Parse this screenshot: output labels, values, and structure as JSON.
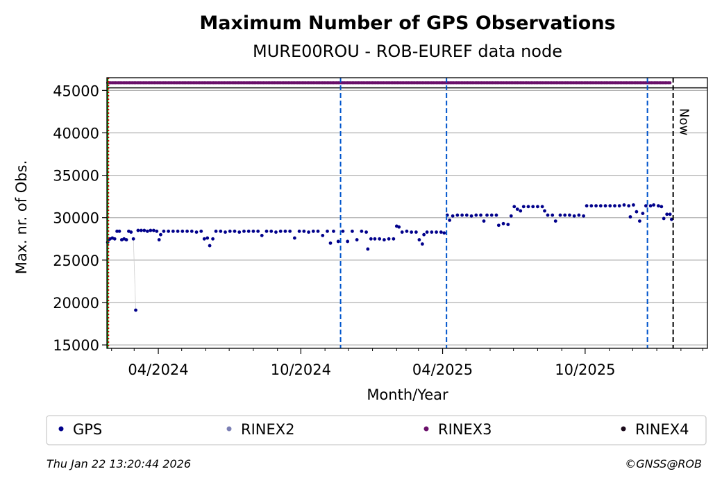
{
  "chart_data": {
    "type": "scatter",
    "title": "Maximum Number of GPS Observations",
    "subtitle": "MURE00ROU - ROB-EUREF data node",
    "xlabel": "Month/Year",
    "ylabel": "Max. nr. of Obs.",
    "xlim": [
      "2024-01-26",
      "2026-03-07"
    ],
    "ylim": [
      14600,
      46500
    ],
    "yticks": [
      15000,
      20000,
      25000,
      30000,
      35000,
      40000,
      45000
    ],
    "xticks": [
      {
        "date": "2024-04-01",
        "label": "04/2024"
      },
      {
        "date": "2024-10-01",
        "label": "10/2024"
      },
      {
        "date": "2025-04-01",
        "label": "04/2025"
      },
      {
        "date": "2025-10-01",
        "label": "10/2025"
      }
    ],
    "minor_xticks": [
      "2024-02-01",
      "2024-03-01",
      "2024-05-01",
      "2024-06-01",
      "2024-07-01",
      "2024-08-01",
      "2024-09-01",
      "2024-11-01",
      "2024-12-01",
      "2025-01-01",
      "2025-02-01",
      "2025-03-01",
      "2025-05-01",
      "2025-06-01",
      "2025-07-01",
      "2025-08-01",
      "2025-09-01",
      "2025-11-01",
      "2025-12-01",
      "2026-01-01",
      "2026-02-01",
      "2026-03-01"
    ],
    "grid": "y",
    "reference_line": {
      "y": 45300,
      "color": "#000000"
    },
    "vlines": [
      {
        "date": "2024-01-27",
        "color": "#00aa00",
        "style": "solid"
      },
      {
        "date": "2024-01-28",
        "color": "#dd0000",
        "style": "dotted"
      },
      {
        "date": "2024-11-21",
        "color": "#0055cc",
        "style": "dashed"
      },
      {
        "date": "2025-04-06",
        "color": "#0055cc",
        "style": "dashed"
      },
      {
        "date": "2025-12-20",
        "color": "#0055cc",
        "style": "dashed"
      },
      {
        "date": "2026-01-22",
        "color": "#000000",
        "style": "dashed",
        "label": "Now"
      }
    ],
    "series": [
      {
        "name": "GPS",
        "color": "#00008b",
        "points": [
          [
            "2024-01-27",
            27100
          ],
          [
            "2024-01-28",
            27400
          ],
          [
            "2024-01-30",
            27500
          ],
          [
            "2024-02-02",
            27600
          ],
          [
            "2024-02-05",
            27500
          ],
          [
            "2024-02-08",
            28400
          ],
          [
            "2024-02-11",
            28400
          ],
          [
            "2024-02-14",
            27400
          ],
          [
            "2024-02-17",
            27500
          ],
          [
            "2024-02-20",
            27400
          ],
          [
            "2024-02-23",
            28400
          ],
          [
            "2024-02-26",
            28300
          ],
          [
            "2024-02-29",
            27500
          ],
          [
            "2024-03-03",
            19100
          ],
          [
            "2024-03-06",
            28500
          ],
          [
            "2024-03-10",
            28500
          ],
          [
            "2024-03-14",
            28500
          ],
          [
            "2024-03-18",
            28400
          ],
          [
            "2024-03-22",
            28500
          ],
          [
            "2024-03-26",
            28500
          ],
          [
            "2024-03-30",
            28400
          ],
          [
            "2024-04-02",
            27400
          ],
          [
            "2024-04-04",
            28000
          ],
          [
            "2024-04-08",
            28400
          ],
          [
            "2024-04-14",
            28400
          ],
          [
            "2024-04-20",
            28400
          ],
          [
            "2024-04-26",
            28400
          ],
          [
            "2024-05-02",
            28400
          ],
          [
            "2024-05-08",
            28400
          ],
          [
            "2024-05-14",
            28400
          ],
          [
            "2024-05-20",
            28300
          ],
          [
            "2024-05-26",
            28400
          ],
          [
            "2024-05-30",
            27500
          ],
          [
            "2024-06-03",
            27600
          ],
          [
            "2024-06-06",
            26700
          ],
          [
            "2024-06-10",
            27500
          ],
          [
            "2024-06-14",
            28400
          ],
          [
            "2024-06-20",
            28400
          ],
          [
            "2024-06-26",
            28300
          ],
          [
            "2024-07-02",
            28400
          ],
          [
            "2024-07-08",
            28400
          ],
          [
            "2024-07-14",
            28300
          ],
          [
            "2024-07-20",
            28400
          ],
          [
            "2024-07-26",
            28400
          ],
          [
            "2024-08-01",
            28400
          ],
          [
            "2024-08-07",
            28400
          ],
          [
            "2024-08-12",
            27900
          ],
          [
            "2024-08-18",
            28400
          ],
          [
            "2024-08-24",
            28400
          ],
          [
            "2024-08-30",
            28300
          ],
          [
            "2024-09-05",
            28400
          ],
          [
            "2024-09-11",
            28400
          ],
          [
            "2024-09-17",
            28400
          ],
          [
            "2024-09-23",
            27600
          ],
          [
            "2024-09-29",
            28400
          ],
          [
            "2024-10-05",
            28400
          ],
          [
            "2024-10-11",
            28300
          ],
          [
            "2024-10-17",
            28400
          ],
          [
            "2024-10-23",
            28400
          ],
          [
            "2024-10-29",
            27900
          ],
          [
            "2024-11-04",
            28400
          ],
          [
            "2024-11-08",
            27000
          ],
          [
            "2024-11-12",
            28400
          ],
          [
            "2024-11-18",
            27200
          ],
          [
            "2024-11-24",
            28400
          ],
          [
            "2024-11-30",
            27200
          ],
          [
            "2024-12-06",
            28400
          ],
          [
            "2024-12-12",
            27400
          ],
          [
            "2024-12-18",
            28400
          ],
          [
            "2024-12-24",
            28300
          ],
          [
            "2024-12-26",
            26300
          ],
          [
            "2024-12-30",
            27500
          ],
          [
            "2025-01-04",
            27500
          ],
          [
            "2025-01-10",
            27500
          ],
          [
            "2025-01-16",
            27400
          ],
          [
            "2025-01-22",
            27500
          ],
          [
            "2025-01-28",
            27500
          ],
          [
            "2025-02-01",
            29000
          ],
          [
            "2025-02-04",
            28900
          ],
          [
            "2025-02-08",
            28300
          ],
          [
            "2025-02-14",
            28400
          ],
          [
            "2025-02-20",
            28300
          ],
          [
            "2025-02-26",
            28300
          ],
          [
            "2025-03-02",
            27400
          ],
          [
            "2025-03-06",
            26900
          ],
          [
            "2025-03-08",
            28000
          ],
          [
            "2025-03-12",
            28300
          ],
          [
            "2025-03-18",
            28300
          ],
          [
            "2025-03-24",
            28300
          ],
          [
            "2025-03-30",
            28300
          ],
          [
            "2025-04-03",
            28200
          ],
          [
            "2025-04-07",
            30300
          ],
          [
            "2025-04-10",
            29700
          ],
          [
            "2025-04-14",
            30200
          ],
          [
            "2025-04-20",
            30300
          ],
          [
            "2025-04-26",
            30300
          ],
          [
            "2025-05-02",
            30300
          ],
          [
            "2025-05-08",
            30200
          ],
          [
            "2025-05-14",
            30300
          ],
          [
            "2025-05-20",
            30300
          ],
          [
            "2025-05-24",
            29600
          ],
          [
            "2025-05-28",
            30300
          ],
          [
            "2025-06-03",
            30300
          ],
          [
            "2025-06-09",
            30300
          ],
          [
            "2025-06-12",
            29100
          ],
          [
            "2025-06-18",
            29300
          ],
          [
            "2025-06-24",
            29200
          ],
          [
            "2025-06-28",
            30200
          ],
          [
            "2025-07-02",
            31300
          ],
          [
            "2025-07-06",
            31000
          ],
          [
            "2025-07-10",
            30800
          ],
          [
            "2025-07-14",
            31300
          ],
          [
            "2025-07-20",
            31300
          ],
          [
            "2025-07-26",
            31300
          ],
          [
            "2025-08-01",
            31300
          ],
          [
            "2025-08-07",
            31300
          ],
          [
            "2025-08-10",
            30800
          ],
          [
            "2025-08-14",
            30300
          ],
          [
            "2025-08-20",
            30300
          ],
          [
            "2025-08-24",
            29600
          ],
          [
            "2025-08-30",
            30300
          ],
          [
            "2025-09-05",
            30300
          ],
          [
            "2025-09-11",
            30300
          ],
          [
            "2025-09-17",
            30200
          ],
          [
            "2025-09-23",
            30300
          ],
          [
            "2025-09-29",
            30200
          ],
          [
            "2025-10-03",
            31400
          ],
          [
            "2025-10-09",
            31400
          ],
          [
            "2025-10-15",
            31400
          ],
          [
            "2025-10-21",
            31400
          ],
          [
            "2025-10-27",
            31400
          ],
          [
            "2025-11-02",
            31400
          ],
          [
            "2025-11-08",
            31400
          ],
          [
            "2025-11-14",
            31400
          ],
          [
            "2025-11-20",
            31500
          ],
          [
            "2025-11-26",
            31400
          ],
          [
            "2025-11-28",
            30100
          ],
          [
            "2025-12-02",
            31500
          ],
          [
            "2025-12-06",
            30700
          ],
          [
            "2025-12-10",
            29600
          ],
          [
            "2025-12-14",
            30500
          ],
          [
            "2025-12-18",
            31400
          ],
          [
            "2025-12-24",
            31400
          ],
          [
            "2025-12-28",
            31500
          ],
          [
            "2026-01-03",
            31400
          ],
          [
            "2026-01-07",
            31300
          ],
          [
            "2026-01-10",
            29900
          ],
          [
            "2026-01-14",
            30400
          ],
          [
            "2026-01-18",
            30400
          ],
          [
            "2026-01-20",
            29800
          ]
        ]
      },
      {
        "name": "RINEX2",
        "color": "#7b7fb4",
        "points": []
      },
      {
        "name": "RINEX3",
        "color": "#6a0f6a",
        "constant": 45900,
        "from": "2024-01-27",
        "to": "2026-01-19"
      },
      {
        "name": "RINEX4",
        "color": "#1a0a1a",
        "points": []
      }
    ]
  },
  "footer": {
    "timestamp": "Thu Jan 22 13:20:44 2026",
    "credit": "©GNSS@ROB"
  }
}
